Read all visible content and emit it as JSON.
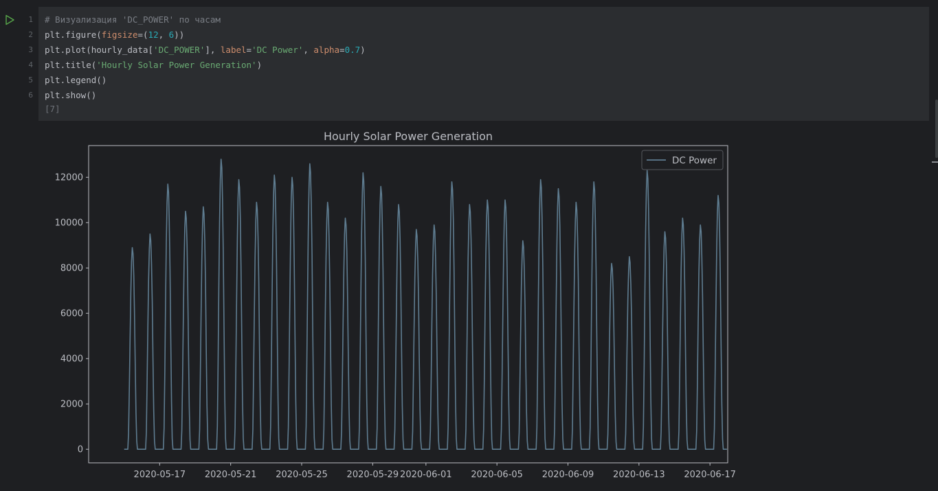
{
  "cell": {
    "execution_count": "[7]",
    "lines": [
      {
        "num": "1",
        "tokens": [
          {
            "t": "# Визуализация 'DC_POWER' по часам",
            "c": "cm"
          }
        ]
      },
      {
        "num": "2",
        "tokens": [
          {
            "t": "plt.figure(",
            "c": ""
          },
          {
            "t": "figsize",
            "c": "kw"
          },
          {
            "t": "=(",
            "c": ""
          },
          {
            "t": "12",
            "c": "num"
          },
          {
            "t": ", ",
            "c": ""
          },
          {
            "t": "6",
            "c": "num"
          },
          {
            "t": "))",
            "c": ""
          }
        ]
      },
      {
        "num": "3",
        "tokens": [
          {
            "t": "plt.plot(hourly_data[",
            "c": ""
          },
          {
            "t": "'DC_POWER'",
            "c": "str"
          },
          {
            "t": "], ",
            "c": ""
          },
          {
            "t": "label",
            "c": "kw"
          },
          {
            "t": "=",
            "c": ""
          },
          {
            "t": "'DC Power'",
            "c": "str"
          },
          {
            "t": ", ",
            "c": ""
          },
          {
            "t": "alpha",
            "c": "kw"
          },
          {
            "t": "=",
            "c": ""
          },
          {
            "t": "0.7",
            "c": "num"
          },
          {
            "t": ")",
            "c": ""
          }
        ]
      },
      {
        "num": "4",
        "tokens": [
          {
            "t": "plt.title(",
            "c": ""
          },
          {
            "t": "'Hourly Solar Power Generation'",
            "c": "str"
          },
          {
            "t": ")",
            "c": ""
          }
        ]
      },
      {
        "num": "5",
        "tokens": [
          {
            "t": "plt.legend()",
            "c": ""
          }
        ]
      },
      {
        "num": "6",
        "tokens": [
          {
            "t": "plt.show()",
            "c": ""
          }
        ]
      }
    ]
  },
  "chart_data": {
    "type": "line",
    "title": "Hourly Solar Power Generation",
    "xlabel": "",
    "ylabel": "",
    "x_start": "2020-05-15",
    "x_end": "2020-06-17",
    "xlim": [
      "2020-05-13",
      "2020-06-18"
    ],
    "ylim": [
      -600,
      13400
    ],
    "x_ticks": [
      "2020-05-17",
      "2020-05-21",
      "2020-05-25",
      "2020-05-29",
      "2020-06-01",
      "2020-06-05",
      "2020-06-09",
      "2020-06-13",
      "2020-06-17"
    ],
    "y_ticks": [
      0,
      2000,
      4000,
      6000,
      8000,
      10000,
      12000
    ],
    "legend_position": "top-right",
    "grid": false,
    "series": [
      {
        "name": "DC Power",
        "color": "#5f7d91",
        "daily_peaks": [
          8900,
          9500,
          11700,
          10500,
          10700,
          12800,
          11900,
          10900,
          12100,
          12000,
          12600,
          10900,
          10200,
          12200,
          11600,
          10800,
          9700,
          9900,
          11800,
          10800,
          11000,
          11000,
          9200,
          11900,
          11500,
          10900,
          11800,
          8200,
          8500,
          12300,
          9600,
          10200,
          9900,
          11200
        ]
      }
    ]
  },
  "colors": {
    "plot_background": "#1e1f22",
    "axis_text": "#bcbec4",
    "axis_line": "#bcbec4",
    "line": "#5f7d91"
  }
}
